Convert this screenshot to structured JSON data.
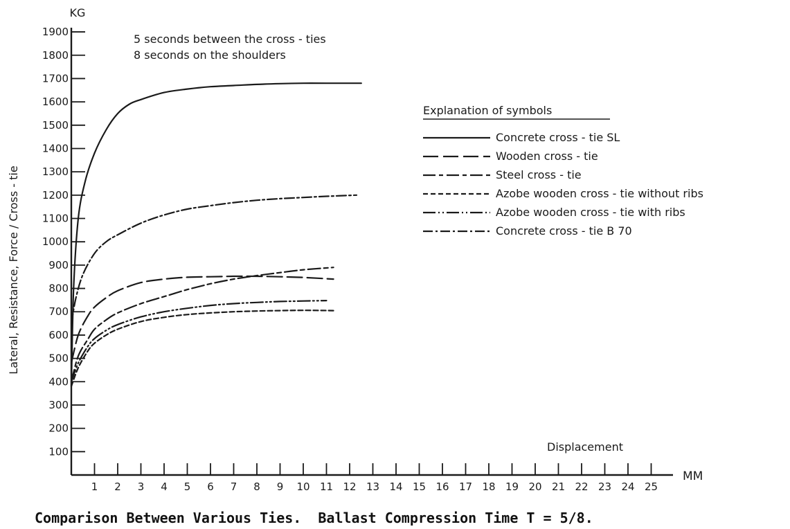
{
  "chart_data": {
    "type": "line",
    "y_unit_label": "KG",
    "x_unit_label": "MM",
    "ylabel": "Lateral, Resistance, Force / Cross - tie",
    "xlabel": "Displacement",
    "notes": [
      "5 seconds between the cross - ties",
      "8 seconds on the shoulders"
    ],
    "caption": "Comparison Between Various Ties.  Ballast Compression Time T = 5/8.",
    "legend_title": "Explanation of symbols",
    "legend_position": "right",
    "xlim": [
      0,
      25
    ],
    "ylim": [
      0,
      1900
    ],
    "x_ticks": [
      1,
      2,
      3,
      4,
      5,
      6,
      7,
      8,
      9,
      10,
      11,
      12,
      13,
      14,
      15,
      16,
      17,
      18,
      19,
      20,
      21,
      22,
      23,
      24,
      25
    ],
    "y_ticks": [
      100,
      200,
      300,
      400,
      500,
      600,
      700,
      800,
      900,
      1000,
      1100,
      1200,
      1300,
      1400,
      1500,
      1600,
      1700,
      1800,
      1900
    ],
    "grid": false,
    "series": [
      {
        "name": "Concrete cross - tie SL",
        "dash": "solid",
        "x": [
          0,
          0.1,
          0.3,
          0.6,
          1,
          1.5,
          2,
          2.5,
          3,
          4,
          5,
          6,
          7,
          8,
          9,
          10,
          11,
          12.5
        ],
        "y": [
          380,
          800,
          1100,
          1260,
          1380,
          1480,
          1550,
          1590,
          1610,
          1640,
          1655,
          1665,
          1670,
          1675,
          1678,
          1680,
          1680,
          1680
        ]
      },
      {
        "name": "Wooden cross - tie",
        "dash": "long",
        "x": [
          0,
          0.3,
          0.7,
          1,
          1.5,
          2,
          3,
          4,
          5,
          6,
          7,
          8,
          9,
          10,
          11.3
        ],
        "y": [
          480,
          600,
          680,
          720,
          760,
          790,
          825,
          840,
          848,
          850,
          852,
          852,
          850,
          847,
          840
        ]
      },
      {
        "name": "Steel cross - tie",
        "dash": "longshort",
        "x": [
          0,
          0.3,
          0.7,
          1,
          1.5,
          2,
          3,
          4,
          5,
          6,
          7,
          8,
          9,
          10,
          11.3
        ],
        "y": [
          400,
          510,
          580,
          625,
          665,
          695,
          735,
          765,
          795,
          820,
          840,
          855,
          868,
          880,
          890
        ]
      },
      {
        "name": "Azobe wooden cross - tie without ribs",
        "dash": "short",
        "x": [
          0,
          0.3,
          0.7,
          1,
          1.5,
          2,
          3,
          4,
          5,
          6,
          7,
          8,
          9,
          10,
          11.3
        ],
        "y": [
          380,
          460,
          530,
          565,
          600,
          625,
          658,
          676,
          688,
          695,
          700,
          703,
          705,
          706,
          705
        ]
      },
      {
        "name": "Azobe wooden cross - tie with ribs",
        "dash": "dashdotdot",
        "x": [
          0,
          0.3,
          0.7,
          1,
          1.5,
          2,
          3,
          4,
          5,
          6,
          7,
          8,
          9,
          10,
          11
        ],
        "y": [
          400,
          480,
          550,
          585,
          620,
          645,
          678,
          700,
          715,
          727,
          735,
          740,
          744,
          746,
          748
        ]
      },
      {
        "name": "Concrete cross - tie B 70",
        "dash": "dashdot",
        "x": [
          0,
          0.2,
          0.5,
          1,
          1.5,
          2,
          3,
          4,
          5,
          6,
          7,
          8,
          9,
          10,
          11,
          12.3
        ],
        "y": [
          650,
          760,
          860,
          950,
          1000,
          1030,
          1080,
          1115,
          1140,
          1155,
          1168,
          1178,
          1185,
          1190,
          1195,
          1200
        ]
      }
    ]
  }
}
